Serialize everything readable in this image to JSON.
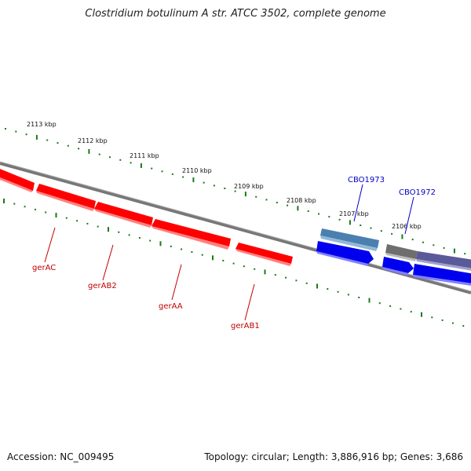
{
  "title": "Clostridium botulinum A str. ATCC 3502, complete genome",
  "footer": {
    "accession": "Accession: NC_009495",
    "summary": "Topology: circular; Length: 3,886,916 bp; Genes: 3,686"
  },
  "ticks": [
    {
      "label": "2113 kbp"
    },
    {
      "label": "2112 kbp"
    },
    {
      "label": "2111 kbp"
    },
    {
      "label": "2110 kbp"
    },
    {
      "label": "2109 kbp"
    },
    {
      "label": "2108 kbp"
    },
    {
      "label": "2107 kbp"
    },
    {
      "label": "2106 kbp"
    }
  ],
  "genes_reverse": [
    {
      "name": "gerAC",
      "color": "#ff0000"
    },
    {
      "name": "gerAB2",
      "color": "#ff0000"
    },
    {
      "name": "gerAA",
      "color": "#ff0000"
    },
    {
      "name": "gerAB1",
      "color": "#ff0000"
    }
  ],
  "genes_forward": [
    {
      "name": "CBO1973",
      "color": "#4a7fb0"
    },
    {
      "name": "CBO1972",
      "color": "#5a5a9a"
    }
  ],
  "colors": {
    "backbone": "#777777",
    "tick_dots": "#1a7a1a",
    "red_gene": "#ff0000",
    "blue_gene": "#0000ee",
    "gray_gene": "#6e6e6e",
    "label_red": "#c00000",
    "label_blue": "#0000c8"
  }
}
